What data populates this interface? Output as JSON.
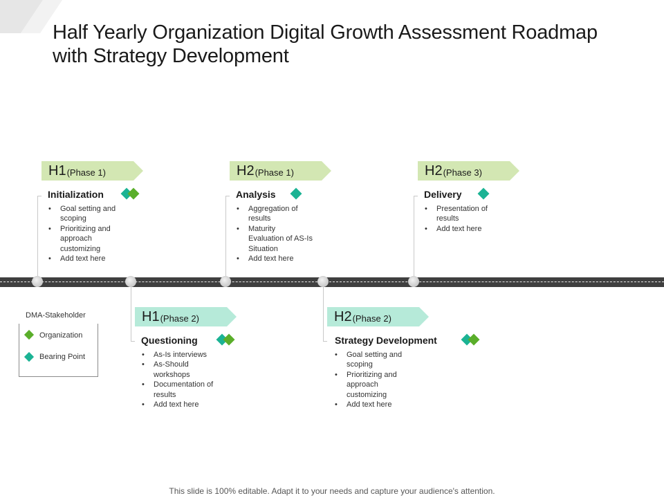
{
  "title": "Half Yearly Organization Digital Growth  Assessment Roadmap with Strategy Development",
  "colors": {
    "tag_green": "#d3e7b3",
    "tag_teal": "#b6ead9",
    "diamond_teal": "#1bb394",
    "diamond_green": "#5aae2a",
    "road": "#3f3f3f"
  },
  "stages": [
    {
      "half": "H1",
      "phase": "(Phase 1)",
      "name": "Initialization",
      "bullets": [
        "Goal setting and scoping",
        "Prioritizing and approach customizing",
        "Add text here"
      ]
    },
    {
      "half": "H1",
      "phase": "(Phase 2)",
      "name": "Questioning",
      "bullets": [
        "As-Is interviews",
        "As-Should workshops",
        "Documentation of results",
        "Add text here"
      ]
    },
    {
      "half": "H2",
      "phase": "(Phase 1)",
      "name": "Analysis",
      "bullets": [
        "Aggregation of results",
        "Maturity Evaluation of AS-Is Situation",
        "Add text here"
      ]
    },
    {
      "half": "H2",
      "phase": "(Phase 2)",
      "name": "Strategy Development",
      "bullets": [
        "Goal setting and scoping",
        "Prioritizing and approach customizing",
        "Add text here"
      ]
    },
    {
      "half": "H2",
      "phase": "(Phase 3)",
      "name": "Delivery",
      "bullets": [
        "Presentation of results",
        "Add text here"
      ]
    }
  ],
  "legend": {
    "title": "DMA-Stakeholder",
    "items": [
      {
        "label": "Organization",
        "icon": "green-diamond-icon"
      },
      {
        "label": "Bearing Point",
        "icon": "teal-diamond-icon"
      }
    ]
  },
  "footer": "This slide is 100% editable. Adapt it to your needs and capture your audience's attention."
}
